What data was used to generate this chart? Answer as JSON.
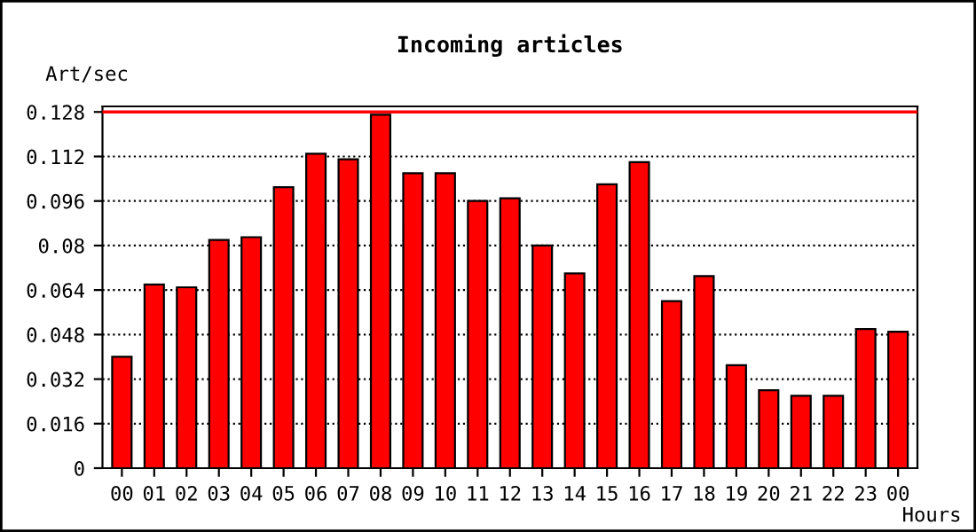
{
  "chart_data": {
    "type": "bar",
    "title": "Incoming articles",
    "xlabel": "Hours",
    "ylabel": "Art/sec",
    "categories": [
      "00",
      "01",
      "02",
      "03",
      "04",
      "05",
      "06",
      "07",
      "08",
      "09",
      "10",
      "11",
      "12",
      "13",
      "14",
      "15",
      "16",
      "17",
      "18",
      "19",
      "20",
      "21",
      "22",
      "23",
      "00"
    ],
    "values": [
      0.04,
      0.066,
      0.065,
      0.082,
      0.083,
      0.101,
      0.113,
      0.111,
      0.127,
      0.106,
      0.106,
      0.096,
      0.097,
      0.08,
      0.07,
      0.102,
      0.11,
      0.06,
      0.069,
      0.037,
      0.028,
      0.026,
      0.026,
      0.05,
      0.049
    ],
    "color": "#ff0000",
    "ylim": [
      0,
      0.13
    ],
    "yticks": [
      0,
      0.016,
      0.032,
      0.048,
      0.064,
      0.08,
      0.096,
      0.112,
      0.128
    ],
    "ref_lines": [
      {
        "axis": "y",
        "value": 0.128,
        "color": "#ff0000",
        "line_style": "solid"
      }
    ],
    "grid": "y",
    "line_style": "dotted"
  }
}
